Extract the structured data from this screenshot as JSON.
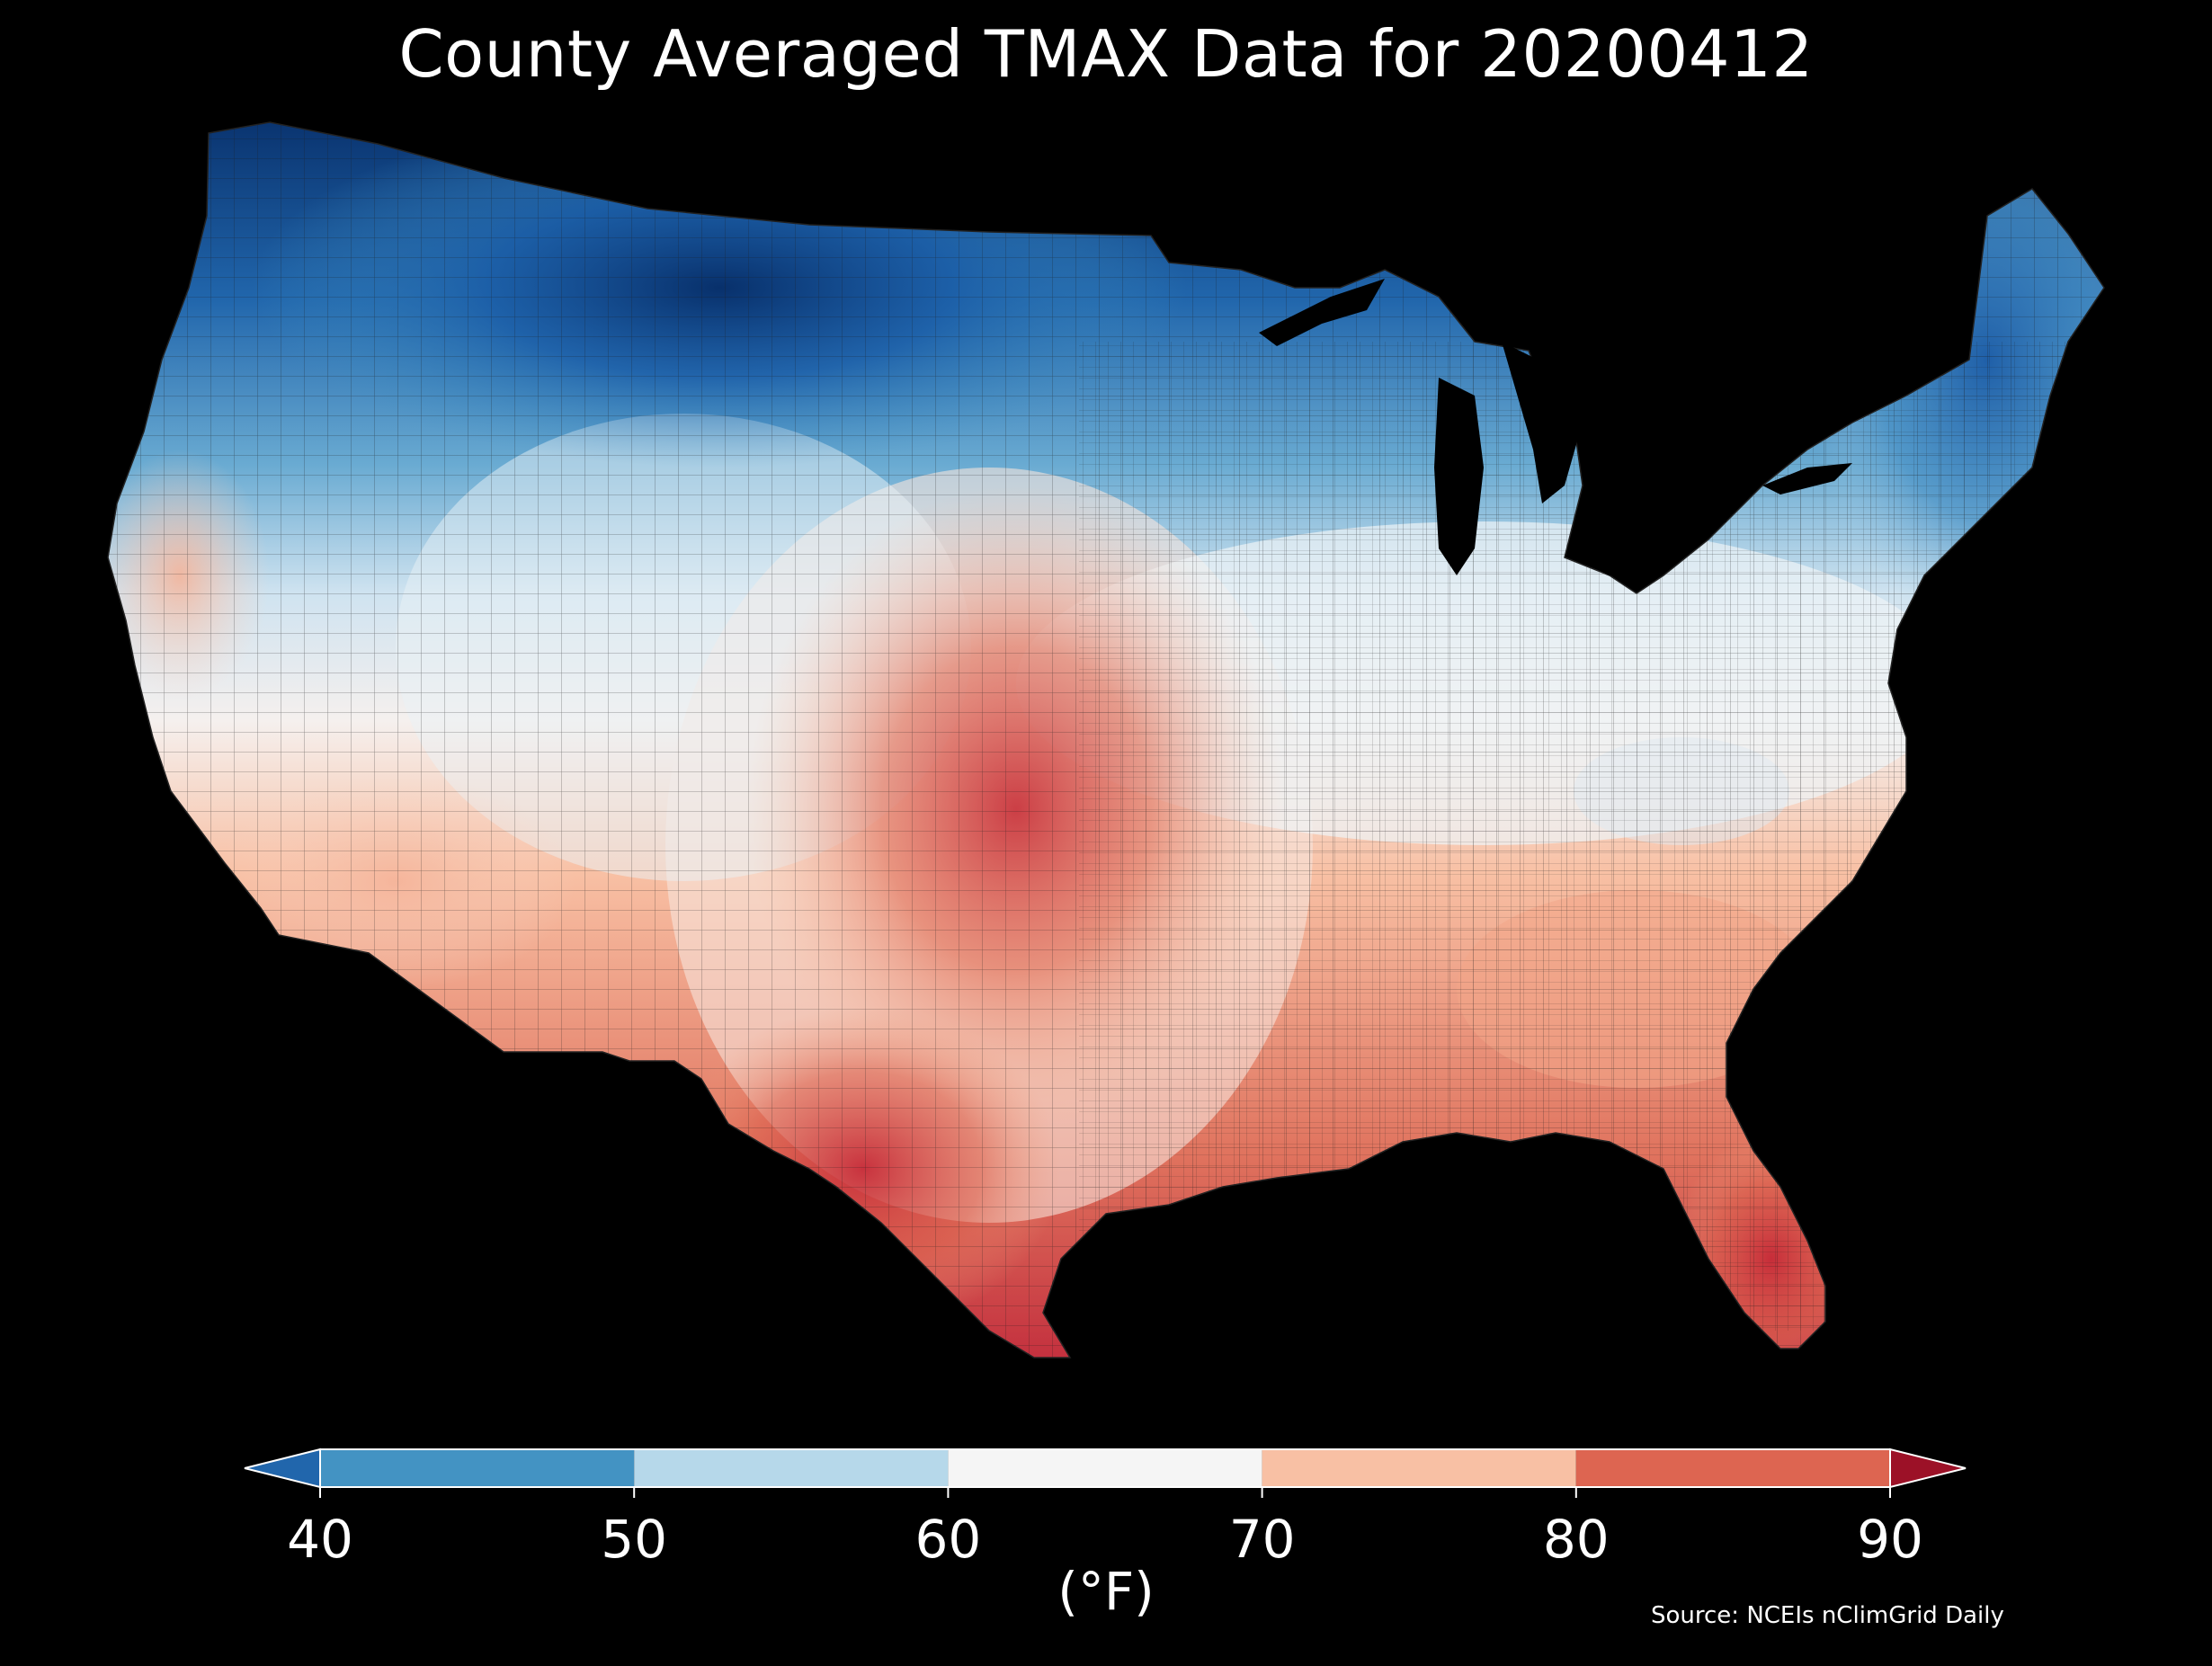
{
  "title": "County Averaged TMAX Data for 20200412",
  "colorbar": {
    "unit_label": "(°F)",
    "ticks": [
      "40",
      "50",
      "60",
      "70",
      "80",
      "90"
    ],
    "bins": [
      {
        "range": "<40",
        "color": "#2166ac"
      },
      {
        "range": "40-50",
        "color": "#4393c3"
      },
      {
        "range": "50-60",
        "color": "#b6d8ea"
      },
      {
        "range": "60-70",
        "color": "#f5f5f5"
      },
      {
        "range": "70-80",
        "color": "#f8c0a4"
      },
      {
        "range": "80-90",
        "color": "#dd6551"
      },
      {
        "range": ">90",
        "color": "#9c1127"
      }
    ]
  },
  "source": "Source: NCEIs nClimGrid Daily",
  "map": {
    "region": "Contiguous United States",
    "variable": "TMAX",
    "date": "20200412"
  }
}
